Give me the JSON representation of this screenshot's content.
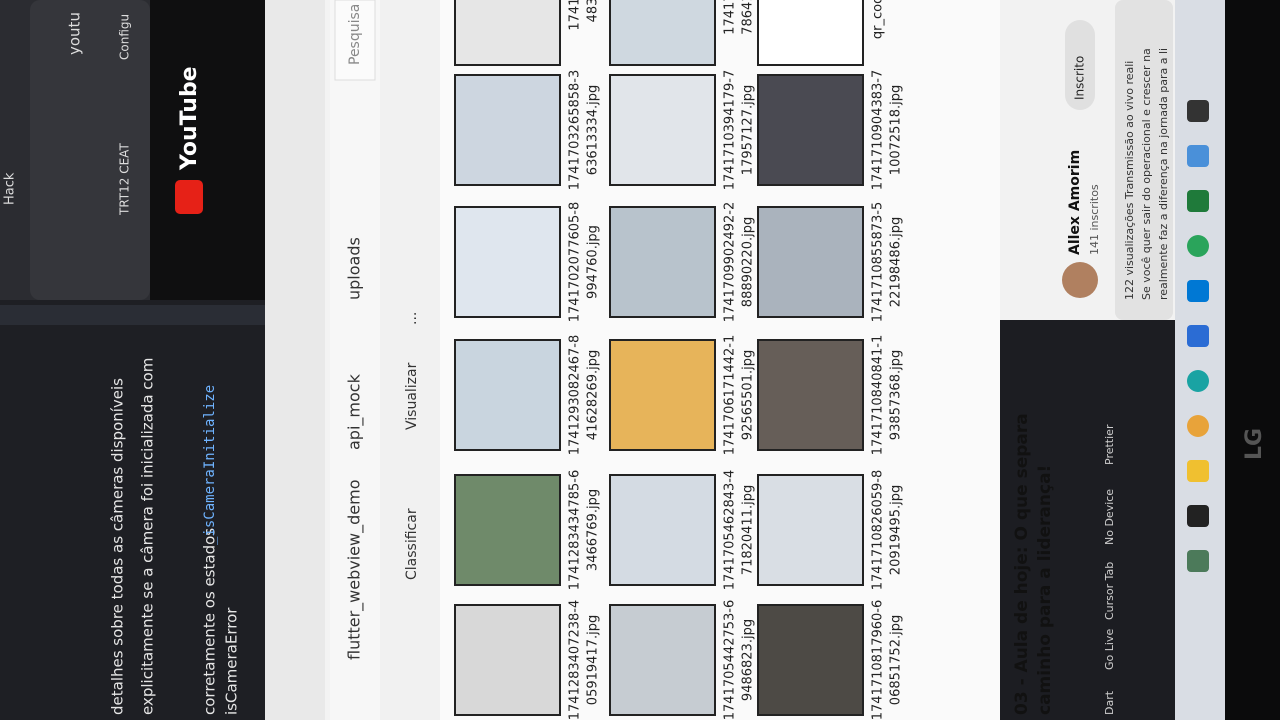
{
  "editor": {
    "lines": [
      "detalhes sobre todas as câmeras disponíveis",
      "explicitamente se a câmera foi inicializada com",
      "corretamente os estados",
      "isCameraError"
    ],
    "code": "_isCameraInitialize",
    "status": [
      "Dart",
      "Go Live",
      "Cursor Tab",
      "No Device",
      "Prettier"
    ]
  },
  "browser": {
    "tabs": [
      "Hack",
      "youtu"
    ],
    "bookmarks": [
      "TRT12 CEAT",
      "Configu"
    ],
    "logo": "YouTube"
  },
  "explorer": {
    "breadcrumb": [
      "flutter_webview_demo",
      "api_mock",
      "uploads"
    ],
    "search": "Pesquisa",
    "toolbar": [
      "Classificar",
      "Visualizar",
      "..."
    ],
    "columns": [
      [
        [
          "1741283407238-4",
          "05919417.jpg"
        ],
        [
          "1741283434785-6",
          "3466769.jpg"
        ],
        [
          "1741293082467-8",
          "41628269.jpg"
        ],
        [
          "1741702077605-8",
          "994760.jpg"
        ],
        [
          "1741703265858-3",
          "63613334.jpg"
        ],
        [
          "17417",
          "483"
        ]
      ],
      [
        [
          "1741705442753-6",
          "9486823.jpg"
        ],
        [
          "1741705462843-4",
          "71820411.jpg"
        ],
        [
          "1741706171442-1",
          "92565501.jpg"
        ],
        [
          "1741709902492-2",
          "88890220.jpg"
        ],
        [
          "1741710394179-7",
          "17957127.jpg"
        ],
        [
          "174171",
          "786415"
        ]
      ],
      [
        [
          "1741710817960-6",
          "06851752.jpg"
        ],
        [
          "1741710826059-8",
          "20919495.jpg"
        ],
        [
          "1741710840841-1",
          "93857368.jpg"
        ],
        [
          "1741710855873-5",
          "22198486.jpg"
        ],
        [
          "1741710904383-7",
          "10072518.jpg"
        ],
        [
          "qr_codes"
        ]
      ]
    ]
  },
  "video": {
    "title": [
      "03 - Aula de hoje: O que separa",
      "caminho para a liderança!"
    ],
    "channel": "Allex Amorim",
    "subscribers": "141 inscritos",
    "subscribed": "Inscrito",
    "description": [
      "122 visualizações  Transmissão ao vivo reali",
      "Se você quer sair do operacional e crescer na",
      "realmente faz a diferença na jornada para a li"
    ]
  },
  "monitor": {
    "brand": "LG"
  }
}
